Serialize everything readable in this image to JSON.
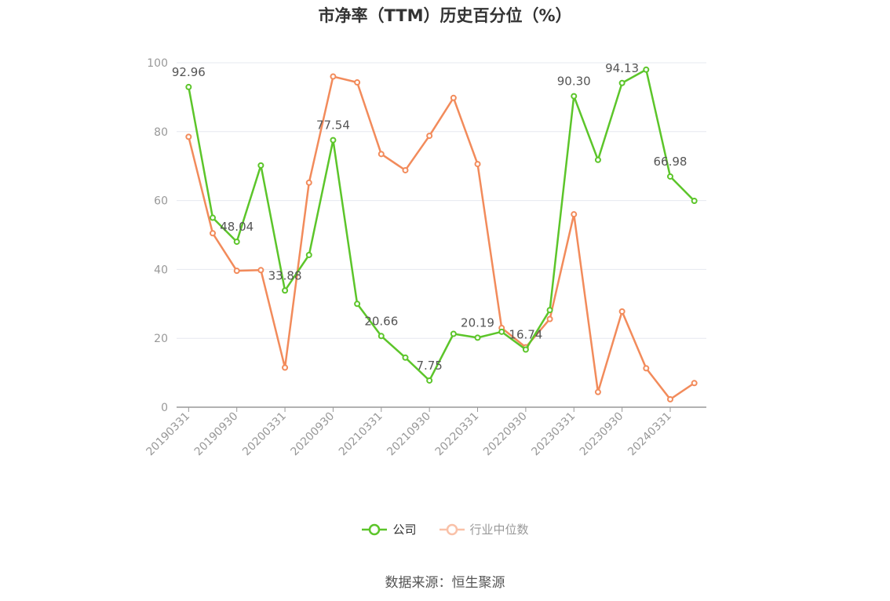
{
  "chart_data": {
    "type": "line",
    "title": "市净率（TTM）历史百分位（%）",
    "x": [
      "20190331",
      "20190630",
      "20190930",
      "20191231",
      "20200331",
      "20200630",
      "20200930",
      "20201231",
      "20210331",
      "20210630",
      "20210930",
      "20211231",
      "20220331",
      "20220630",
      "20220930",
      "20221231",
      "20230331",
      "20230630",
      "20230930",
      "20231231",
      "20240331",
      "20240630"
    ],
    "x_tick_labels": [
      "20190331",
      "20190930",
      "20200331",
      "20200930",
      "20210331",
      "20210930",
      "20220331",
      "20220930",
      "20230331",
      "20230930",
      "20240331"
    ],
    "y_ticks": [
      0,
      20,
      40,
      60,
      80,
      100
    ],
    "ylim": [
      0,
      100
    ],
    "grid": true,
    "legend_position": "bottom",
    "series": [
      {
        "name": "公司",
        "color": "#5cc52a",
        "values": [
          92.96,
          55.0,
          48.04,
          70.2,
          33.88,
          44.2,
          77.54,
          30.0,
          20.66,
          14.4,
          7.75,
          21.3,
          20.19,
          21.9,
          16.74,
          28.2,
          90.3,
          71.8,
          94.13,
          98.0,
          66.98,
          59.9
        ],
        "labels": [
          {
            "index": 0,
            "text": "92.96"
          },
          {
            "index": 2,
            "text": "48.04"
          },
          {
            "index": 4,
            "text": "33.88"
          },
          {
            "index": 6,
            "text": "77.54"
          },
          {
            "index": 8,
            "text": "20.66"
          },
          {
            "index": 10,
            "text": "7.75"
          },
          {
            "index": 12,
            "text": "20.19"
          },
          {
            "index": 14,
            "text": "16.74"
          },
          {
            "index": 16,
            "text": "90.30"
          },
          {
            "index": 18,
            "text": "94.13"
          },
          {
            "index": 20,
            "text": "66.98"
          }
        ]
      },
      {
        "name": "行业中位数",
        "color": "#f28b5b",
        "values": [
          78.5,
          50.5,
          39.6,
          39.8,
          11.5,
          65.2,
          96.0,
          94.3,
          73.5,
          68.8,
          78.8,
          89.8,
          70.6,
          23.0,
          17.4,
          25.6,
          56.0,
          4.4,
          27.8,
          11.3,
          2.3,
          7.0
        ]
      }
    ]
  },
  "legend": {
    "items": [
      {
        "label": "公司",
        "color": "#5cc52a"
      },
      {
        "label": "行业中位数",
        "color": "#f9c1a8"
      }
    ]
  },
  "source": "数据来源：恒生聚源"
}
